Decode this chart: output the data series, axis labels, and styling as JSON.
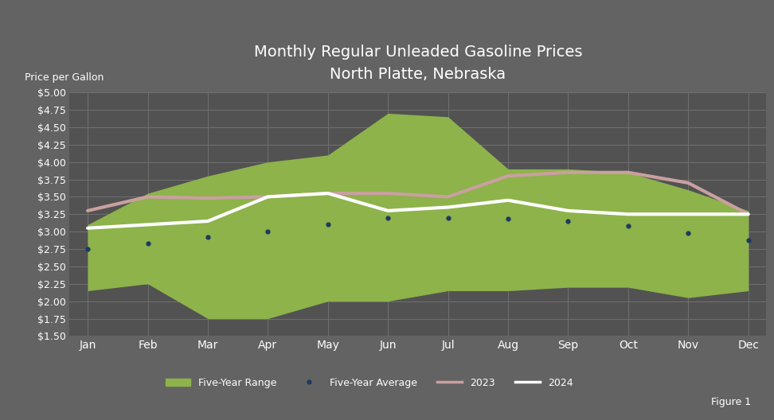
{
  "title_line1": "Monthly Regular Unleaded Gasoline Prices",
  "title_line2": "North Platte, Nebraska",
  "ylabel": "Price per Gallon",
  "figure_label": "Figure 1",
  "background_color": "#636363",
  "plot_bg_color": "#525252",
  "grid_color": "#707070",
  "months": [
    "Jan",
    "Feb",
    "Mar",
    "Apr",
    "May",
    "Jun",
    "Jul",
    "Aug",
    "Sep",
    "Oct",
    "Nov",
    "Dec"
  ],
  "five_year_low": [
    2.15,
    2.25,
    1.75,
    1.75,
    2.0,
    2.0,
    2.15,
    2.15,
    2.2,
    2.2,
    2.05,
    2.15
  ],
  "five_year_high": [
    3.1,
    3.55,
    3.8,
    4.0,
    4.1,
    4.7,
    4.65,
    3.9,
    3.9,
    3.85,
    3.6,
    3.3
  ],
  "five_year_avg": [
    2.75,
    2.83,
    2.92,
    3.0,
    3.1,
    3.2,
    3.2,
    3.18,
    3.15,
    3.08,
    2.98,
    2.88
  ],
  "price_2023": [
    3.3,
    3.5,
    3.48,
    3.5,
    3.55,
    3.55,
    3.5,
    3.8,
    3.85,
    3.85,
    3.7,
    3.25
  ],
  "price_2024": [
    3.05,
    3.1,
    3.15,
    3.5,
    3.55,
    3.3,
    3.35,
    3.45,
    3.3,
    3.25,
    3.25,
    3.25
  ],
  "fill_color": "#8db34a",
  "fill_alpha": 1.0,
  "avg_color": "#1e3a5f",
  "line_2023_color": "#c9a0a0",
  "line_2024_color": "#ffffff",
  "ylim": [
    1.5,
    5.0
  ],
  "yticks": [
    1.5,
    1.75,
    2.0,
    2.25,
    2.5,
    2.75,
    3.0,
    3.25,
    3.5,
    3.75,
    4.0,
    4.25,
    4.5,
    4.75,
    5.0
  ],
  "title_color": "#ffffff",
  "tick_color": "#ffffff",
  "label_color": "#ffffff"
}
